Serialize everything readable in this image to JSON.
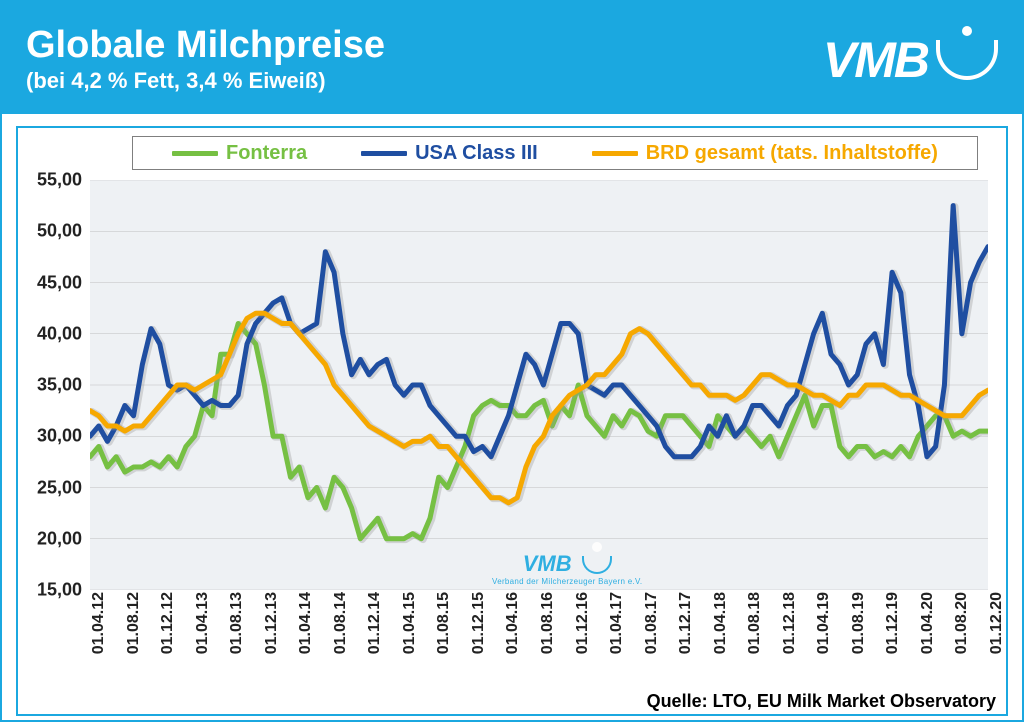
{
  "header": {
    "title": "Globale Milchpreise",
    "subtitle": "(bei 4,2 % Fett, 3,4 % Eiweiß)",
    "logo_text": "VMB",
    "logo_color": "#ffffff",
    "bg_color": "#1ba8e0"
  },
  "source": "Quelle:  LTO, EU Milk Market Observatory",
  "watermark": {
    "text": "VMB",
    "sub": "Verband der Milcherzeuger Bayern e.V."
  },
  "chart": {
    "type": "line",
    "background_color": "#eef1f4",
    "panel_border_color": "#1ba8e0",
    "grid_color": "#bfbfbf",
    "line_width": 5,
    "ylim": [
      15,
      55
    ],
    "ytick_step": 5,
    "y_ticks": [
      "15,00",
      "20,00",
      "25,00",
      "30,00",
      "35,00",
      "40,00",
      "45,00",
      "50,00",
      "55,00"
    ],
    "x_labels": [
      "01.04.12",
      "01.08.12",
      "01.12.12",
      "01.04.13",
      "01.08.13",
      "01.12.13",
      "01.04.14",
      "01.08.14",
      "01.12.14",
      "01.04.15",
      "01.08.15",
      "01.12.15",
      "01.04.16",
      "01.08.16",
      "01.12.16",
      "01.04.17",
      "01.08.17",
      "01.12.17",
      "01.04.18",
      "01.08.18",
      "01.12.18",
      "01.04.19",
      "01.08.19",
      "01.12.19",
      "01.04.20",
      "01.08.20",
      "01.12.20"
    ],
    "series": [
      {
        "name": "Fonterra",
        "color": "#76c043",
        "values": [
          28,
          29,
          27,
          28,
          26.5,
          27,
          27,
          27.5,
          27,
          28,
          27,
          29,
          30,
          33,
          32,
          38,
          38,
          41,
          40,
          39,
          35,
          30,
          30,
          26,
          27,
          24,
          25,
          23,
          26,
          25,
          23,
          20,
          21,
          22,
          20,
          20,
          20,
          20.5,
          20,
          22,
          26,
          25,
          27,
          29,
          32,
          33,
          33.5,
          33,
          33,
          32,
          32,
          33,
          33.5,
          31,
          33,
          32,
          35,
          32,
          31,
          30,
          32,
          31,
          32.5,
          32,
          30.5,
          30,
          32,
          32,
          32,
          31,
          30,
          29,
          32,
          31,
          30,
          31,
          30,
          29,
          30,
          28,
          30,
          32,
          34,
          31,
          33,
          33,
          29,
          28,
          29,
          29,
          28,
          28.5,
          28,
          29,
          28,
          30,
          31,
          32,
          32,
          30,
          30.5,
          30,
          30.5,
          30.5
        ]
      },
      {
        "name": "USA Class III",
        "color": "#1f4ea1",
        "values": [
          30,
          31,
          29.5,
          31,
          33,
          32,
          37,
          40.5,
          39,
          35,
          34.5,
          35,
          34,
          33,
          33.5,
          33,
          33,
          34,
          39,
          41,
          42,
          43,
          43.5,
          41,
          40,
          40.5,
          41,
          48,
          46,
          40,
          36,
          37.5,
          36,
          37,
          37.5,
          35,
          34,
          35,
          35,
          33,
          32,
          31,
          30,
          30,
          28.5,
          29,
          28,
          30,
          32,
          35,
          38,
          37,
          35,
          38,
          41,
          41,
          40,
          35,
          34.5,
          34,
          35,
          35,
          34,
          33,
          32,
          31,
          29,
          28,
          28,
          28,
          29,
          31,
          30,
          32,
          30,
          31,
          33,
          33,
          32,
          31,
          33,
          34,
          37,
          40,
          42,
          38,
          37,
          35,
          36,
          39,
          40,
          37,
          46,
          44,
          36,
          33,
          28,
          29,
          35,
          52.5,
          40,
          45,
          47,
          48.5
        ]
      },
      {
        "name": "BRD gesamt (tats. Inhaltstoffe)",
        "color": "#f6a800",
        "values": [
          32.5,
          32,
          31,
          31,
          30.5,
          31,
          31,
          32,
          33,
          34,
          35,
          35,
          34.5,
          35,
          35.5,
          36,
          38,
          40,
          41.5,
          42,
          42,
          41.5,
          41,
          41,
          40,
          39,
          38,
          37,
          35,
          34,
          33,
          32,
          31,
          30.5,
          30,
          29.5,
          29,
          29.5,
          29.5,
          30,
          29,
          29,
          28,
          27,
          26,
          25,
          24,
          24,
          23.5,
          24,
          27,
          29,
          30,
          32,
          33,
          34,
          34.5,
          35,
          36,
          36,
          37,
          38,
          40,
          40.5,
          40,
          39,
          38,
          37,
          36,
          35,
          35,
          34,
          34,
          34,
          33.5,
          34,
          35,
          36,
          36,
          35.5,
          35,
          35,
          34.5,
          34,
          34,
          33.5,
          33,
          34,
          34,
          35,
          35,
          35,
          34.5,
          34,
          34,
          33.5,
          33,
          32.5,
          32,
          32,
          32,
          33,
          34,
          34.5
        ]
      }
    ]
  }
}
